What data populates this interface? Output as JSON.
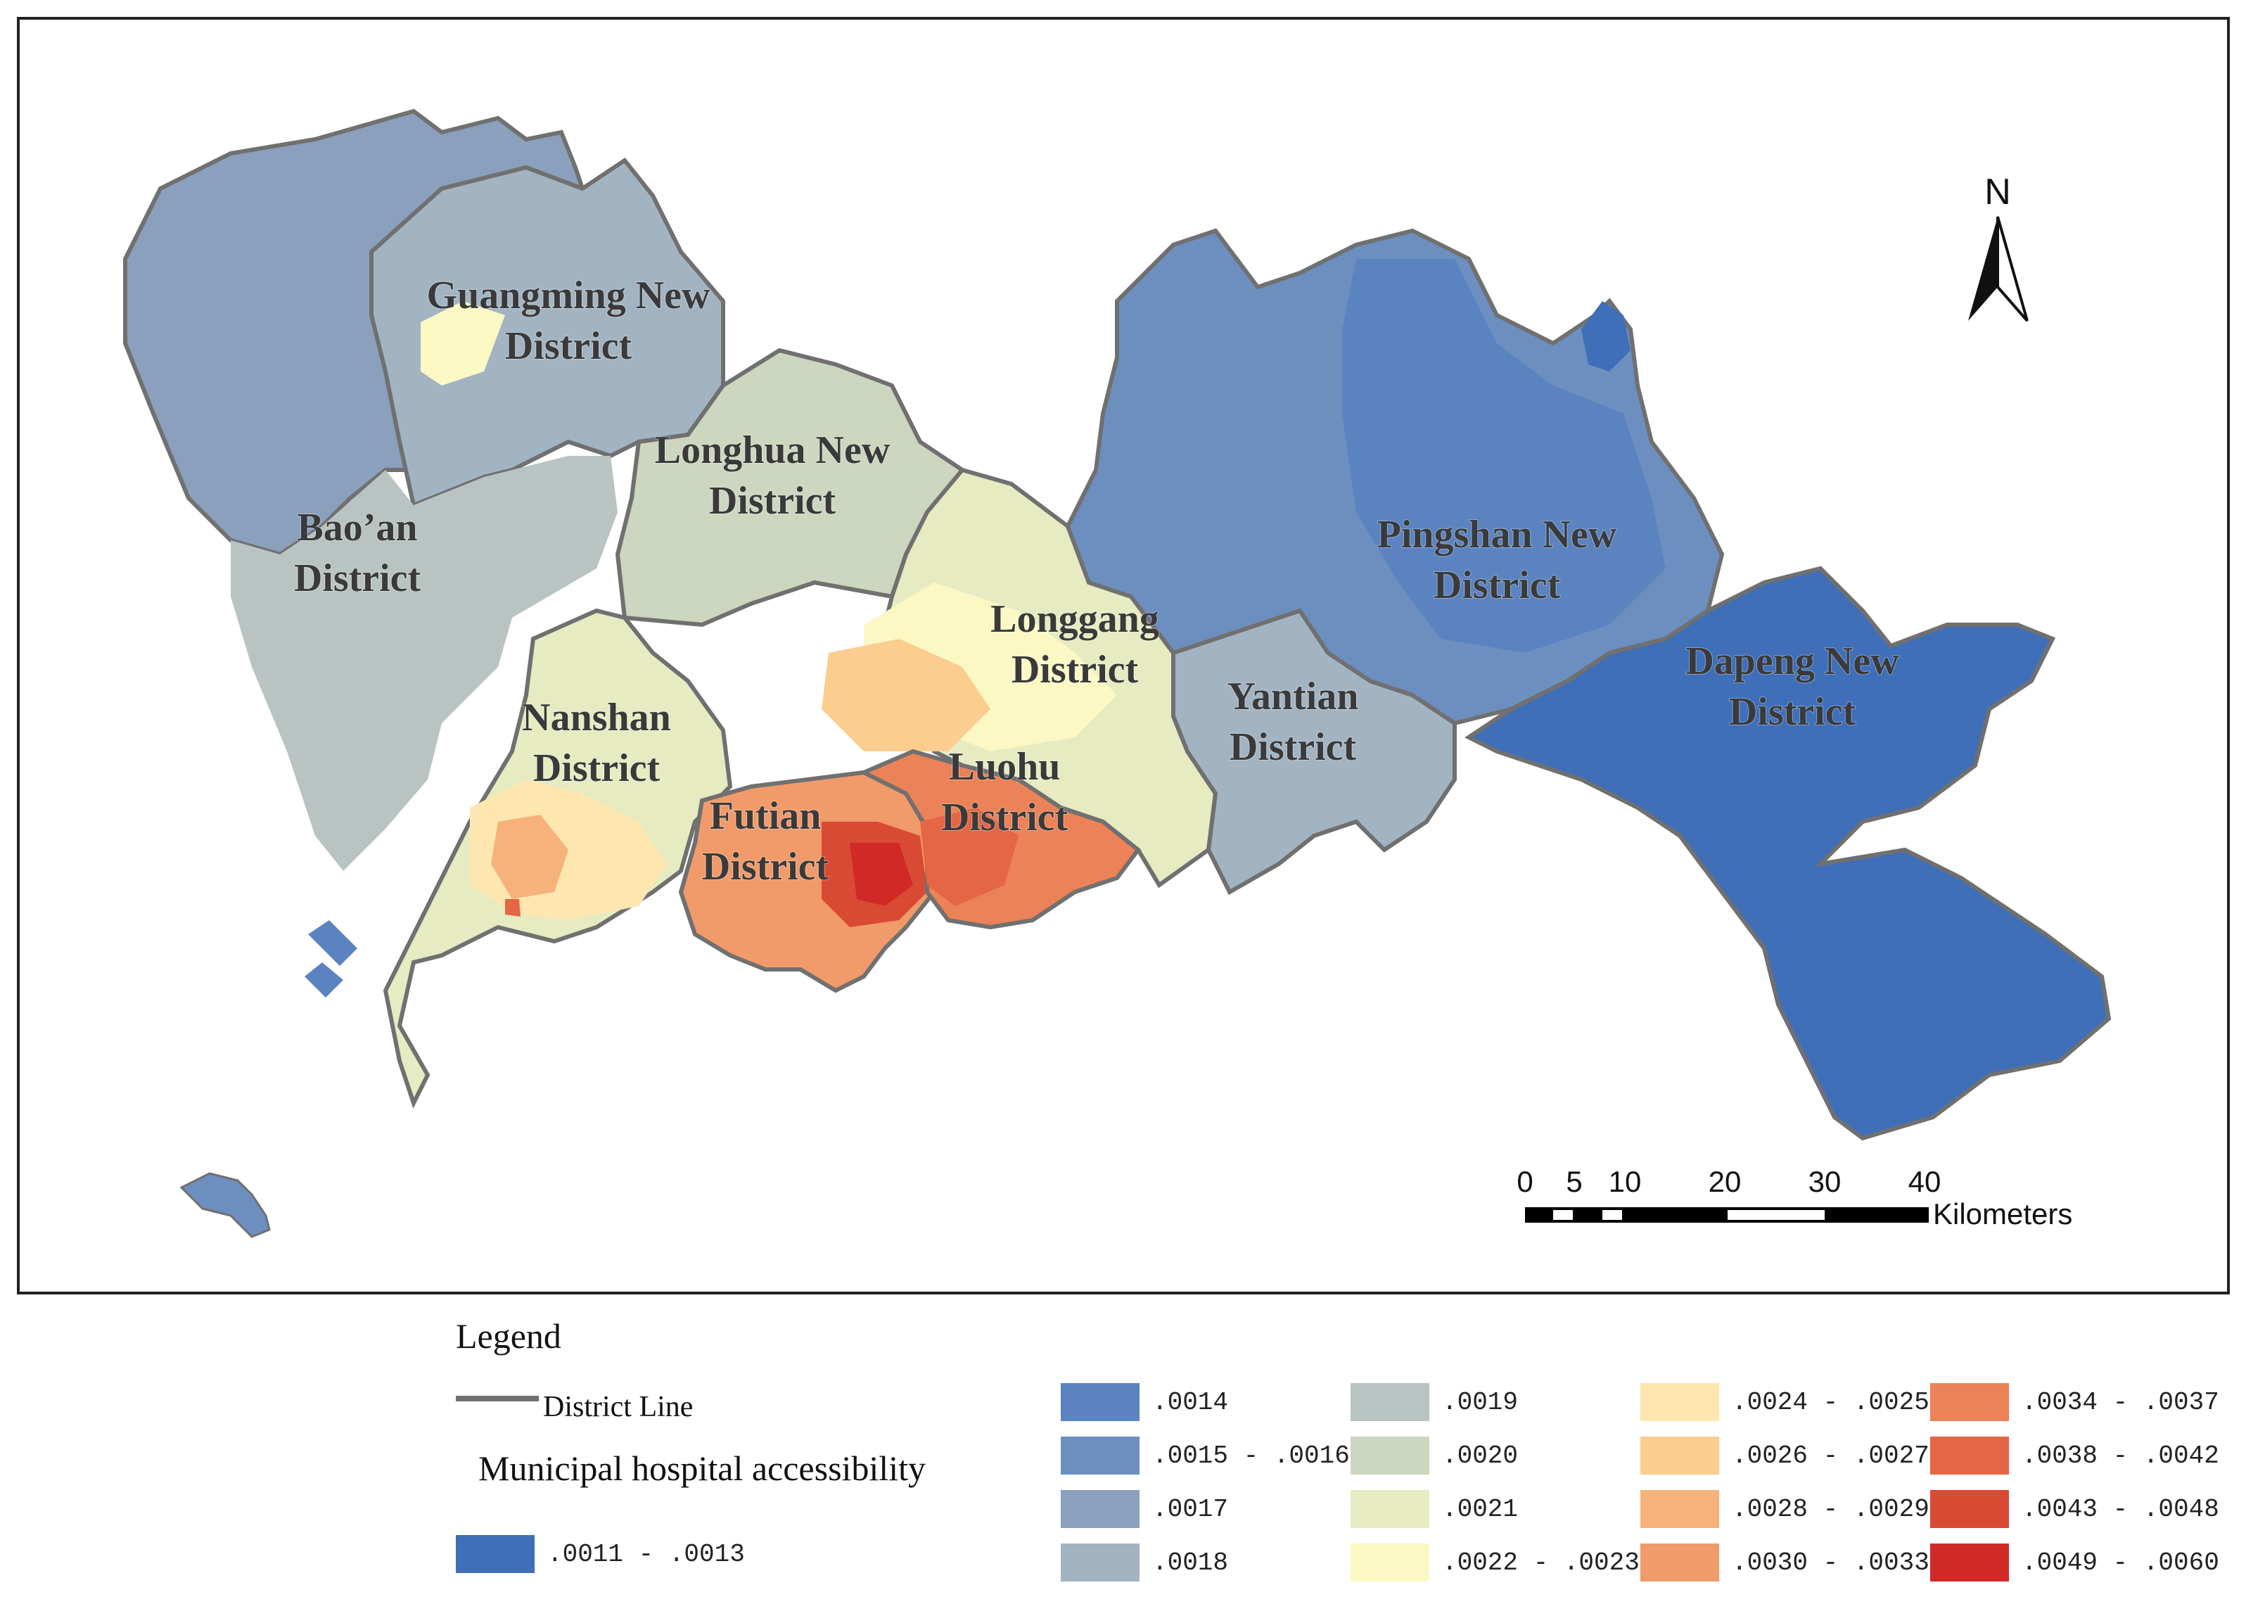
{
  "map": {
    "districts": [
      {
        "id": "baoan",
        "lines": [
          "Bao’an",
          "District"
        ]
      },
      {
        "id": "guangming",
        "lines": [
          "Guangming New",
          "District"
        ]
      },
      {
        "id": "longhua",
        "lines": [
          "Longhua New",
          "District"
        ]
      },
      {
        "id": "nanshan",
        "lines": [
          "Nanshan",
          "District"
        ]
      },
      {
        "id": "futian",
        "lines": [
          "Futian",
          "District"
        ]
      },
      {
        "id": "luohu",
        "lines": [
          "Luohu",
          "District"
        ]
      },
      {
        "id": "longgang",
        "lines": [
          "Longgang",
          "District"
        ]
      },
      {
        "id": "yantian",
        "lines": [
          "Yantian",
          "District"
        ]
      },
      {
        "id": "pingshan",
        "lines": [
          "Pingshan New",
          "District"
        ]
      },
      {
        "id": "dapeng",
        "lines": [
          "Dapeng New",
          "District"
        ]
      }
    ],
    "north_arrow": "N",
    "scale_bar": {
      "ticks": [
        "0",
        "5",
        "10",
        "20",
        "30",
        "40"
      ],
      "unit": "Kilometers"
    }
  },
  "legend": {
    "title": "Legend",
    "district_line": "District Line",
    "accessibility_title": "Municipal hospital accessibility",
    "classes": [
      {
        "label": ".0011 - .0013",
        "color": "#3f6fb8"
      },
      {
        "label": ".0014",
        "color": "#5a83c0"
      },
      {
        "label": ".0015 - .0016",
        "color": "#6d8fc0"
      },
      {
        "label": ".0017",
        "color": "#8aa0bc"
      },
      {
        "label": ".0018",
        "color": "#a2b4c2"
      },
      {
        "label": ".0019",
        "color": "#b8c3c2"
      },
      {
        "label": ".0020",
        "color": "#cdd6be"
      },
      {
        "label": ".0021",
        "color": "#e6ebc2"
      },
      {
        "label": ".0022 - .0023",
        "color": "#fbf8c4"
      },
      {
        "label": ".0024 - .0025",
        "color": "#fde6b0"
      },
      {
        "label": ".0026 - .0027",
        "color": "#fbcd8e"
      },
      {
        "label": ".0028 - .0029",
        "color": "#f6b27a"
      },
      {
        "label": ".0030 - .0033",
        "color": "#f19a6a"
      },
      {
        "label": ".0034 - .0037",
        "color": "#ec8257"
      },
      {
        "label": ".0038 - .0042",
        "color": "#e46644"
      },
      {
        "label": ".0043 - .0048",
        "color": "#d94a34"
      },
      {
        "label": ".0049 - .0060",
        "color": "#d12a26"
      }
    ]
  }
}
